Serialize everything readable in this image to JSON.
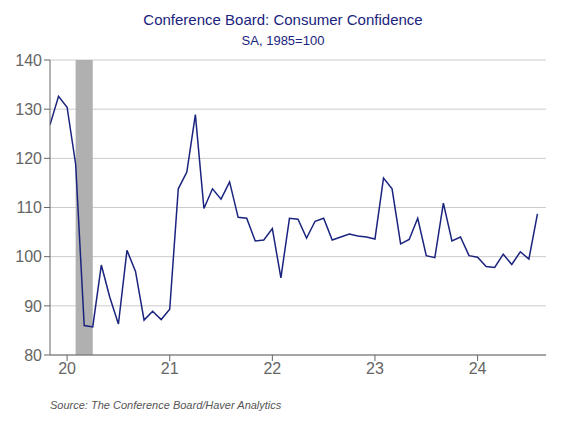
{
  "chart_data": {
    "type": "line",
    "title": "Conference Board: Consumer Confidence",
    "subtitle": "SA, 1985=100",
    "source": "Source:  The Conference Board/Haver Analytics",
    "color": "#1a237e",
    "x": [
      2019.8333333333333,
      2019.9166666666667,
      2020.0,
      2020.0833333333333,
      2020.1666666666667,
      2020.25,
      2020.3333333333333,
      2020.4166666666667,
      2020.5,
      2020.5833333333333,
      2020.6666666666667,
      2020.75,
      2020.8333333333333,
      2020.9166666666667,
      2021.0,
      2021.0833333333333,
      2021.1666666666667,
      2021.25,
      2021.3333333333333,
      2021.4166666666667,
      2021.5,
      2021.5833333333333,
      2021.6666666666667,
      2021.75,
      2021.8333333333333,
      2021.9166666666667,
      2022.0,
      2022.0833333333333,
      2022.1666666666667,
      2022.25,
      2022.3333333333333,
      2022.4166666666667,
      2022.5,
      2022.5833333333333,
      2022.6666666666667,
      2022.75,
      2022.8333333333333,
      2022.9166666666667,
      2023.0,
      2023.0833333333333,
      2023.1666666666667,
      2023.25,
      2023.3333333333333,
      2023.4166666666667,
      2023.5,
      2023.5833333333333,
      2023.6666666666667,
      2023.75,
      2023.8333333333333,
      2023.9166666666667,
      2024.0,
      2024.0833333333333,
      2024.1666666666667,
      2024.25,
      2024.3333333333333,
      2024.4166666666667,
      2024.5,
      2024.5833333333333
    ],
    "values": [
      126.8,
      132.6,
      130.4,
      118.8,
      86.0,
      85.7,
      98.3,
      91.7,
      86.3,
      101.3,
      97.0,
      87.1,
      88.9,
      87.2,
      89.3,
      113.8,
      117.2,
      128.9,
      109.8,
      113.8,
      111.7,
      115.2,
      108.0,
      107.8,
      103.2,
      103.4,
      105.7,
      95.7,
      107.8,
      107.6,
      103.8,
      107.2,
      107.8,
      103.4,
      104.0,
      104.6,
      104.2,
      104.0,
      103.6,
      116.0,
      113.8,
      102.6,
      103.5,
      107.8,
      100.2,
      99.8,
      110.9,
      103.2,
      104.0,
      100.2,
      99.9,
      98.0,
      97.8,
      100.5,
      98.4,
      101.0,
      99.5,
      108.7
    ],
    "xlim": [
      2019.8333333333333,
      2024.6666666666667
    ],
    "xticks": [
      {
        "value": 2020,
        "label": "20"
      },
      {
        "value": 2021,
        "label": "21"
      },
      {
        "value": 2022,
        "label": "22"
      },
      {
        "value": 2023,
        "label": "23"
      },
      {
        "value": 2024,
        "label": "24"
      }
    ],
    "ylim": [
      80,
      140
    ],
    "yticks": [
      80,
      90,
      100,
      110,
      120,
      130,
      140
    ],
    "grid": true,
    "band": {
      "start": 2020.083,
      "end": 2020.25,
      "color": "#b0b0b0"
    }
  }
}
